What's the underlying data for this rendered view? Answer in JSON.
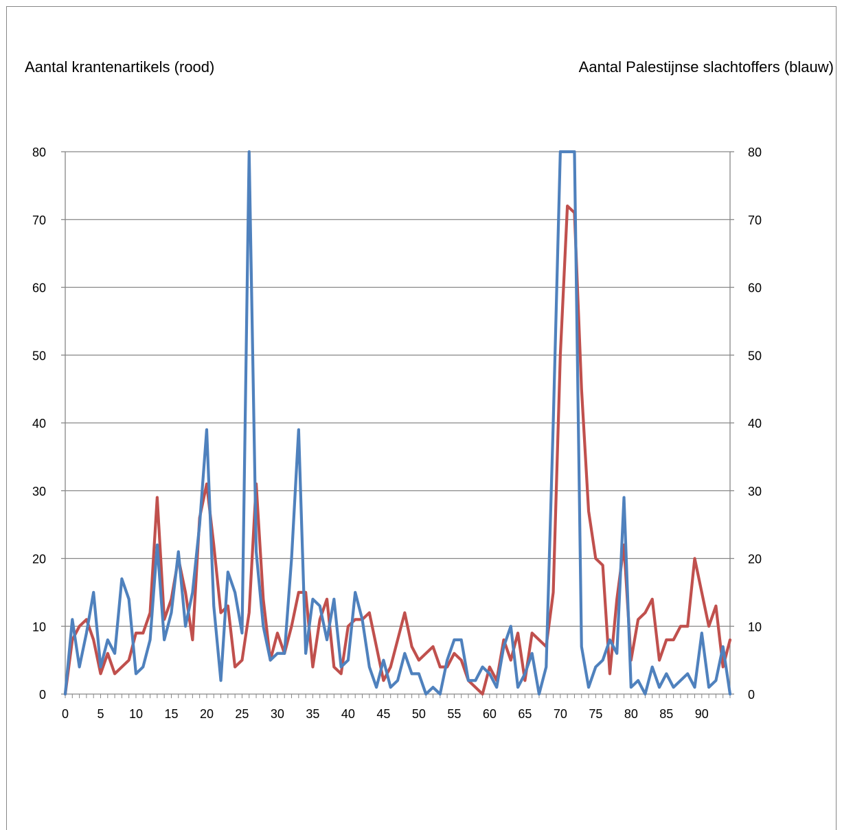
{
  "chart_data": {
    "type": "line",
    "left_axis_title": "Aantal krantenartikels (rood)",
    "right_axis_title": "Aantal Palestijnse slachtoffers (blauw)",
    "xlim": [
      0,
      94
    ],
    "x_tick_labels": [
      "0",
      "5",
      "10",
      "15",
      "20",
      "25",
      "30",
      "35",
      "40",
      "45",
      "50",
      "55",
      "60",
      "65",
      "70",
      "75",
      "80",
      "85",
      "90"
    ],
    "ylim_left": [
      0,
      80
    ],
    "ylim_right": [
      0,
      80
    ],
    "y_ticks": [
      0,
      10,
      20,
      30,
      40,
      50,
      60,
      70,
      80
    ],
    "grid": true,
    "colors": {
      "red": "#c0504d",
      "blue": "#4f81bd",
      "grid": "#868686"
    },
    "series": [
      {
        "color": "red",
        "axis": "left",
        "values": [
          0,
          8,
          10,
          11,
          8,
          3,
          6,
          3,
          4,
          5,
          9,
          9,
          12,
          29,
          11,
          14,
          20,
          15,
          8,
          26,
          31,
          22,
          12,
          13,
          4,
          5,
          12,
          31,
          14,
          5,
          9,
          6,
          10,
          15,
          15,
          4,
          11,
          14,
          4,
          3,
          10,
          11,
          11,
          12,
          7,
          2,
          4,
          8,
          12,
          7,
          5,
          6,
          7,
          4,
          4,
          6,
          5,
          2,
          1,
          0,
          4,
          2,
          8,
          5,
          9,
          2,
          9,
          8,
          7,
          15,
          50,
          72,
          71,
          45,
          27,
          20,
          19,
          3,
          14,
          22,
          5,
          11,
          12,
          14,
          5,
          8,
          8,
          10,
          10,
          20,
          15,
          10,
          13,
          4,
          8
        ]
      },
      {
        "color": "blue",
        "axis": "right",
        "values": [
          0,
          11,
          4,
          9,
          15,
          4,
          8,
          6,
          17,
          14,
          3,
          4,
          8,
          22,
          8,
          12,
          21,
          10,
          15,
          25,
          39,
          13,
          2,
          18,
          15,
          9,
          80,
          21,
          10,
          5,
          6,
          6,
          20,
          39,
          6,
          14,
          13,
          8,
          14,
          4,
          5,
          15,
          11,
          4,
          1,
          5,
          1,
          2,
          6,
          3,
          3,
          0,
          1,
          0,
          5,
          8,
          8,
          2,
          2,
          4,
          3,
          1,
          7,
          10,
          1,
          3,
          6,
          0,
          4,
          40,
          80,
          80,
          80,
          7,
          1,
          4,
          5,
          8,
          6,
          29,
          1,
          2,
          0,
          4,
          1,
          3,
          1,
          2,
          3,
          1,
          9,
          1,
          2,
          7,
          0
        ]
      }
    ]
  }
}
